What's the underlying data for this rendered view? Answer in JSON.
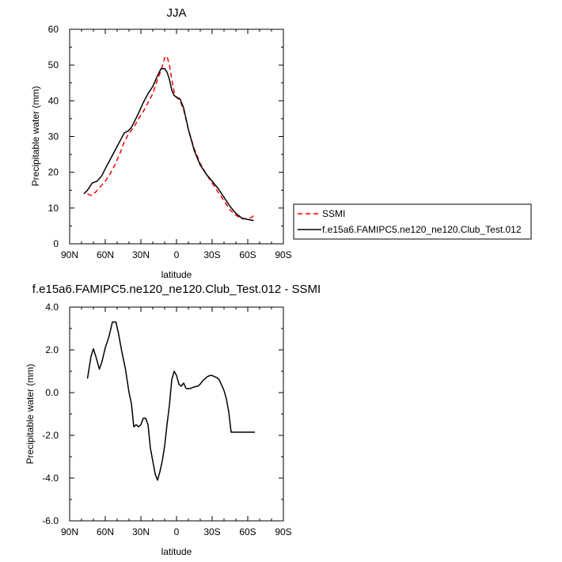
{
  "chart_data": [
    {
      "type": "line",
      "title": "JJA",
      "xlabel": "latitude",
      "ylabel": "Precipitable water (mm)",
      "xlim": [
        90,
        -90
      ],
      "ylim": [
        0,
        60
      ],
      "xticks": [
        90,
        60,
        30,
        0,
        -30,
        -60,
        -90
      ],
      "xtick_labels": [
        "90N",
        "60N",
        "30N",
        "0",
        "30S",
        "60S",
        "90S"
      ],
      "yticks": [
        0,
        10,
        20,
        30,
        40,
        50,
        60
      ],
      "ytick_labels": [
        "0",
        "10",
        "20",
        "30",
        "40",
        "50",
        "60"
      ],
      "grid": false,
      "legend": "right",
      "series": [
        {
          "name": "SSMI",
          "color": "#ff0000",
          "dash": true,
          "x": [
            75,
            72,
            68,
            64,
            60,
            56,
            52,
            48,
            44,
            40,
            36,
            32,
            28,
            24,
            20,
            16,
            13,
            10,
            8,
            6,
            4,
            2,
            0,
            -3,
            -6,
            -10,
            -15,
            -20,
            -25,
            -30,
            -35,
            -40,
            -45,
            -50,
            -55,
            -60,
            -64,
            -66
          ],
          "y": [
            14,
            13.5,
            14.5,
            16,
            17.5,
            19.5,
            22,
            25,
            28.5,
            31,
            32.5,
            35,
            37,
            39.5,
            42,
            46,
            48.5,
            52,
            52.5,
            50,
            46,
            42.5,
            41,
            40,
            37.5,
            32,
            26.5,
            22.5,
            19.5,
            17,
            14.5,
            12,
            9.5,
            8,
            7,
            7,
            7.5,
            8.5
          ]
        },
        {
          "name": "f.e15a6.FAMIPC5.ne120_ne120.Club_Test.012",
          "color": "#000000",
          "dash": false,
          "x": [
            78,
            75,
            71,
            67,
            63,
            60,
            56,
            52,
            48,
            44,
            41,
            38,
            35,
            32,
            28,
            24,
            20,
            16,
            13,
            10,
            8,
            6,
            4,
            2,
            0,
            -3,
            -6,
            -10,
            -15,
            -20,
            -25,
            -30,
            -35,
            -40,
            -45,
            -50,
            -55,
            -60,
            -65
          ],
          "y": [
            14,
            15,
            17,
            17.5,
            19,
            21,
            23.5,
            26,
            28.5,
            31,
            31.5,
            32.5,
            34.5,
            36.5,
            39.5,
            42,
            44,
            47,
            49,
            49,
            48,
            46,
            43,
            41.5,
            41,
            40.5,
            38,
            32,
            26,
            22,
            19.5,
            17.5,
            15.5,
            13,
            10.5,
            8.5,
            7.2,
            6.8,
            6.5
          ]
        }
      ]
    },
    {
      "type": "line",
      "title": "f.e15a6.FAMIPC5.ne120_ne120.Club_Test.012 - SSMI",
      "xlabel": "latitude",
      "ylabel": "Precipitable water (mm)",
      "xlim": [
        90,
        -90
      ],
      "ylim": [
        -6,
        4
      ],
      "xticks": [
        90,
        60,
        30,
        0,
        -30,
        -60,
        -90
      ],
      "xtick_labels": [
        "90N",
        "60N",
        "30N",
        "0",
        "30S",
        "60S",
        "90S"
      ],
      "yticks": [
        -6,
        -4,
        -2,
        0,
        2,
        4
      ],
      "ytick_labels": [
        "-6.0",
        "-4.0",
        "-2.0",
        "0.0",
        "2.0",
        "4.0"
      ],
      "grid": false,
      "series": [
        {
          "color": "#000000",
          "dash": false,
          "x": [
            75,
            72,
            70,
            68,
            65,
            63,
            60,
            57,
            54,
            51,
            49,
            46,
            43,
            40,
            38,
            36,
            34,
            32,
            30,
            28,
            26,
            24,
            22,
            20,
            18,
            16,
            14,
            12,
            10,
            8,
            6,
            4,
            2,
            0,
            -2,
            -4,
            -6,
            -8,
            -10,
            -12,
            -14,
            -16,
            -18,
            -20,
            -22,
            -24,
            -26,
            -28,
            -30,
            -32,
            -34,
            -36,
            -38,
            -40,
            -42,
            -44,
            -46,
            -48,
            -50,
            -52,
            -54,
            -56,
            -58,
            -60,
            -62,
            -64,
            -66
          ],
          "y": [
            0.65,
            1.7,
            2.05,
            1.7,
            1.1,
            1.4,
            2.1,
            2.6,
            3.3,
            3.3,
            2.8,
            1.9,
            1.1,
            0.0,
            -0.5,
            -1.6,
            -1.5,
            -1.6,
            -1.5,
            -1.2,
            -1.2,
            -1.5,
            -2.6,
            -3.2,
            -3.8,
            -4.1,
            -3.7,
            -3.2,
            -2.5,
            -1.5,
            -0.6,
            0.6,
            1.0,
            0.8,
            0.4,
            0.3,
            0.45,
            0.2,
            0.18,
            0.2,
            0.25,
            0.28,
            0.3,
            0.4,
            0.55,
            0.65,
            0.75,
            0.8,
            0.8,
            0.75,
            0.7,
            0.6,
            0.35,
            0.1,
            -0.3,
            -0.9,
            -1.85,
            -1.85,
            -1.85,
            -1.85,
            -1.85,
            -1.85,
            -1.85,
            -1.85,
            -1.85,
            -1.85,
            -1.85
          ]
        }
      ]
    }
  ]
}
